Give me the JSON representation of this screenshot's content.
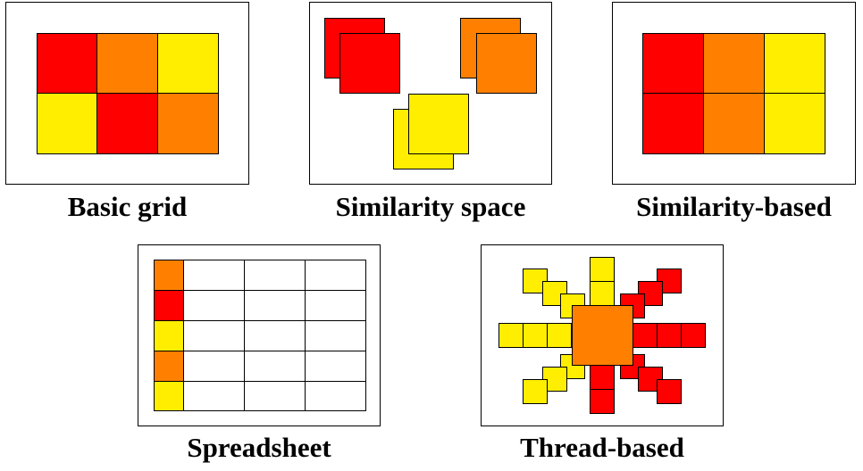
{
  "colors": {
    "red": "#ff0000",
    "orange": "#ff8000",
    "yellow": "#ffee00"
  },
  "panels": {
    "basic_grid": {
      "caption": "Basic grid",
      "rows": [
        [
          "red",
          "orange",
          "yellow"
        ],
        [
          "yellow",
          "red",
          "orange"
        ]
      ]
    },
    "similarity_space": {
      "caption": "Similarity space",
      "groups": [
        "red",
        "orange",
        "yellow"
      ]
    },
    "similarity_based": {
      "caption": "Similarity-based",
      "rows": [
        [
          "red",
          "orange",
          "yellow"
        ],
        [
          "red",
          "orange",
          "yellow"
        ]
      ]
    },
    "spreadsheet": {
      "caption": "Spreadsheet",
      "first_column": [
        "orange",
        "red",
        "yellow",
        "orange",
        "yellow"
      ],
      "columns": 4
    },
    "thread_based": {
      "caption": "Thread-based",
      "center": "orange",
      "left_threads": "yellow",
      "right_threads": "red"
    }
  }
}
